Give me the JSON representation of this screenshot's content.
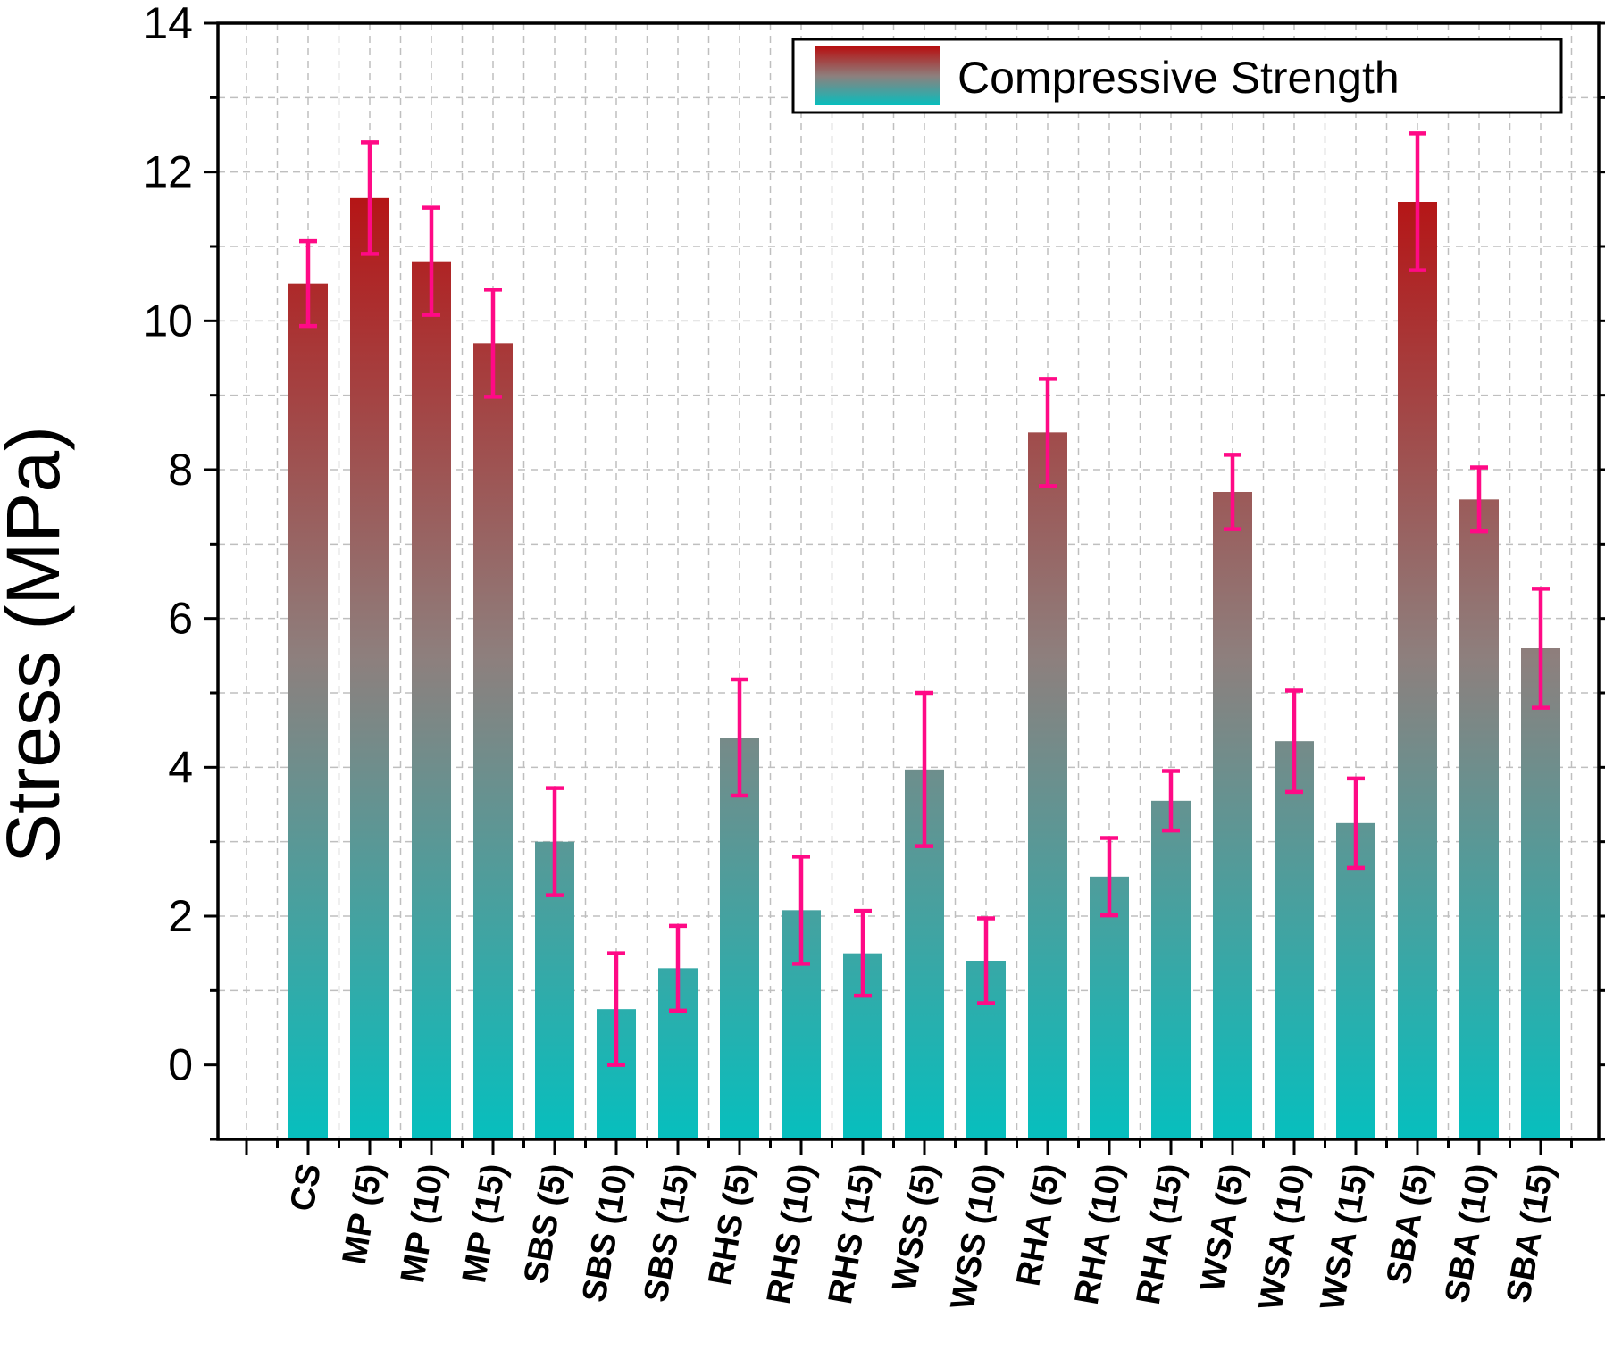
{
  "chart_data": {
    "type": "bar",
    "title": "",
    "xlabel": "",
    "ylabel": "Stress (MPa)",
    "ylim": [
      -1,
      14
    ],
    "yticks": [
      0,
      2,
      4,
      6,
      8,
      10,
      12,
      14
    ],
    "grid": true,
    "legend": {
      "position": "top-right",
      "entries": [
        "Compressive Strength"
      ]
    },
    "categories": [
      "CS",
      "MP (5)",
      "MP (10)",
      "MP (15)",
      "SBS (5)",
      "SBS (10)",
      "SBS (15)",
      "RHS (5)",
      "RHS (10)",
      "RHS (15)",
      "WSS (5)",
      "WSS (10)",
      "RHA (5)",
      "RHA (10)",
      "RHA (15)",
      "WSA (5)",
      "WSA (10)",
      "WSA (15)",
      "SBA (5)",
      "SBA (10)",
      "SBA (15)"
    ],
    "series": [
      {
        "name": "Compressive Strength",
        "values": [
          10.5,
          11.65,
          10.8,
          9.7,
          3.0,
          0.75,
          1.3,
          4.4,
          2.08,
          1.5,
          3.97,
          1.4,
          8.5,
          2.53,
          3.55,
          7.7,
          4.35,
          3.25,
          11.6,
          7.6,
          5.6
        ],
        "error": [
          0.57,
          0.75,
          0.72,
          0.72,
          0.72,
          0.75,
          0.57,
          0.78,
          0.72,
          0.57,
          1.03,
          0.57,
          0.72,
          0.52,
          0.4,
          0.5,
          0.68,
          0.6,
          0.92,
          0.43,
          0.8
        ]
      }
    ],
    "colors": {
      "bar_top": "#b70f10",
      "bar_mid": "#8e7f7d",
      "bar_bottom": "#06bfbe",
      "error_bar": "#ff0a86",
      "axis": "#000000",
      "grid": "#bfbfbf"
    }
  }
}
